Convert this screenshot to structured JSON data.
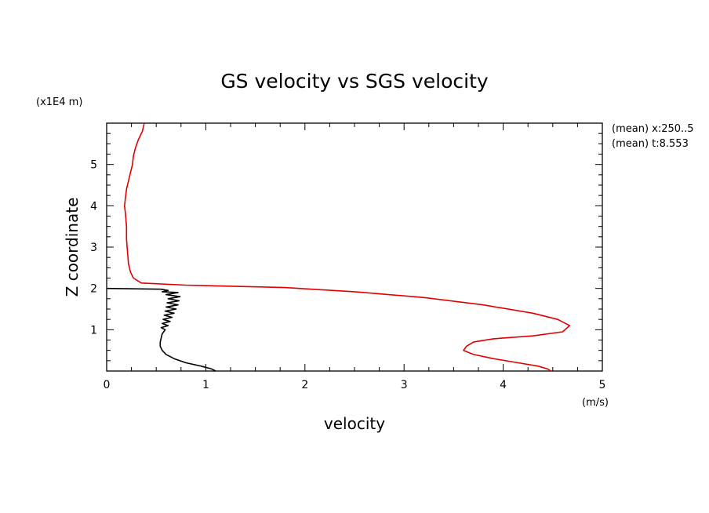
{
  "chart_data": {
    "type": "line",
    "title": "GS velocity vs SGS velocity",
    "xlabel": "velocity",
    "ylabel": "Z coordinate",
    "x_unit": "(m/s)",
    "y_unit": "(x1E4 m)",
    "xlim": [
      0,
      5
    ],
    "ylim": [
      0,
      6
    ],
    "x_ticks": [
      "0",
      "1",
      "2",
      "3",
      "4",
      "5"
    ],
    "y_ticks": [
      "1",
      "2",
      "3",
      "4",
      "5"
    ],
    "annotations": [
      "(mean) x:250..5",
      "(mean) t:8.553"
    ],
    "grid": false,
    "series": [
      {
        "color": "#e00000",
        "points": [
          [
            0.38,
            6.0
          ],
          [
            0.36,
            5.8
          ],
          [
            0.32,
            5.6
          ],
          [
            0.29,
            5.4
          ],
          [
            0.27,
            5.2
          ],
          [
            0.26,
            5.0
          ],
          [
            0.24,
            4.8
          ],
          [
            0.22,
            4.6
          ],
          [
            0.2,
            4.4
          ],
          [
            0.19,
            4.2
          ],
          [
            0.18,
            4.0
          ],
          [
            0.19,
            3.8
          ],
          [
            0.2,
            3.5
          ],
          [
            0.2,
            3.2
          ],
          [
            0.21,
            2.9
          ],
          [
            0.22,
            2.6
          ],
          [
            0.24,
            2.4
          ],
          [
            0.27,
            2.25
          ],
          [
            0.35,
            2.13
          ],
          [
            0.8,
            2.08
          ],
          [
            1.8,
            2.02
          ],
          [
            2.5,
            1.92
          ],
          [
            3.2,
            1.78
          ],
          [
            3.8,
            1.6
          ],
          [
            4.3,
            1.4
          ],
          [
            4.55,
            1.25
          ],
          [
            4.67,
            1.1
          ],
          [
            4.6,
            0.95
          ],
          [
            4.3,
            0.85
          ],
          [
            3.9,
            0.78
          ],
          [
            3.7,
            0.7
          ],
          [
            3.63,
            0.6
          ],
          [
            3.6,
            0.5
          ],
          [
            3.7,
            0.4
          ],
          [
            3.9,
            0.3
          ],
          [
            4.15,
            0.2
          ],
          [
            4.35,
            0.12
          ],
          [
            4.45,
            0.05
          ],
          [
            4.48,
            0.0
          ]
        ]
      },
      {
        "color": "#000000",
        "points": [
          [
            0.0,
            2.0
          ],
          [
            0.55,
            1.98
          ],
          [
            0.62,
            1.95
          ],
          [
            0.56,
            1.92
          ],
          [
            0.72,
            1.9
          ],
          [
            0.6,
            1.85
          ],
          [
            0.74,
            1.8
          ],
          [
            0.62,
            1.75
          ],
          [
            0.73,
            1.7
          ],
          [
            0.61,
            1.65
          ],
          [
            0.72,
            1.6
          ],
          [
            0.6,
            1.55
          ],
          [
            0.7,
            1.5
          ],
          [
            0.59,
            1.45
          ],
          [
            0.68,
            1.4
          ],
          [
            0.58,
            1.35
          ],
          [
            0.66,
            1.3
          ],
          [
            0.57,
            1.25
          ],
          [
            0.64,
            1.2
          ],
          [
            0.56,
            1.15
          ],
          [
            0.62,
            1.1
          ],
          [
            0.55,
            1.05
          ],
          [
            0.59,
            1.0
          ],
          [
            0.56,
            0.9
          ],
          [
            0.55,
            0.8
          ],
          [
            0.54,
            0.7
          ],
          [
            0.54,
            0.6
          ],
          [
            0.56,
            0.5
          ],
          [
            0.6,
            0.4
          ],
          [
            0.68,
            0.3
          ],
          [
            0.8,
            0.2
          ],
          [
            0.95,
            0.12
          ],
          [
            1.06,
            0.05
          ],
          [
            1.1,
            0.0
          ]
        ]
      }
    ]
  }
}
